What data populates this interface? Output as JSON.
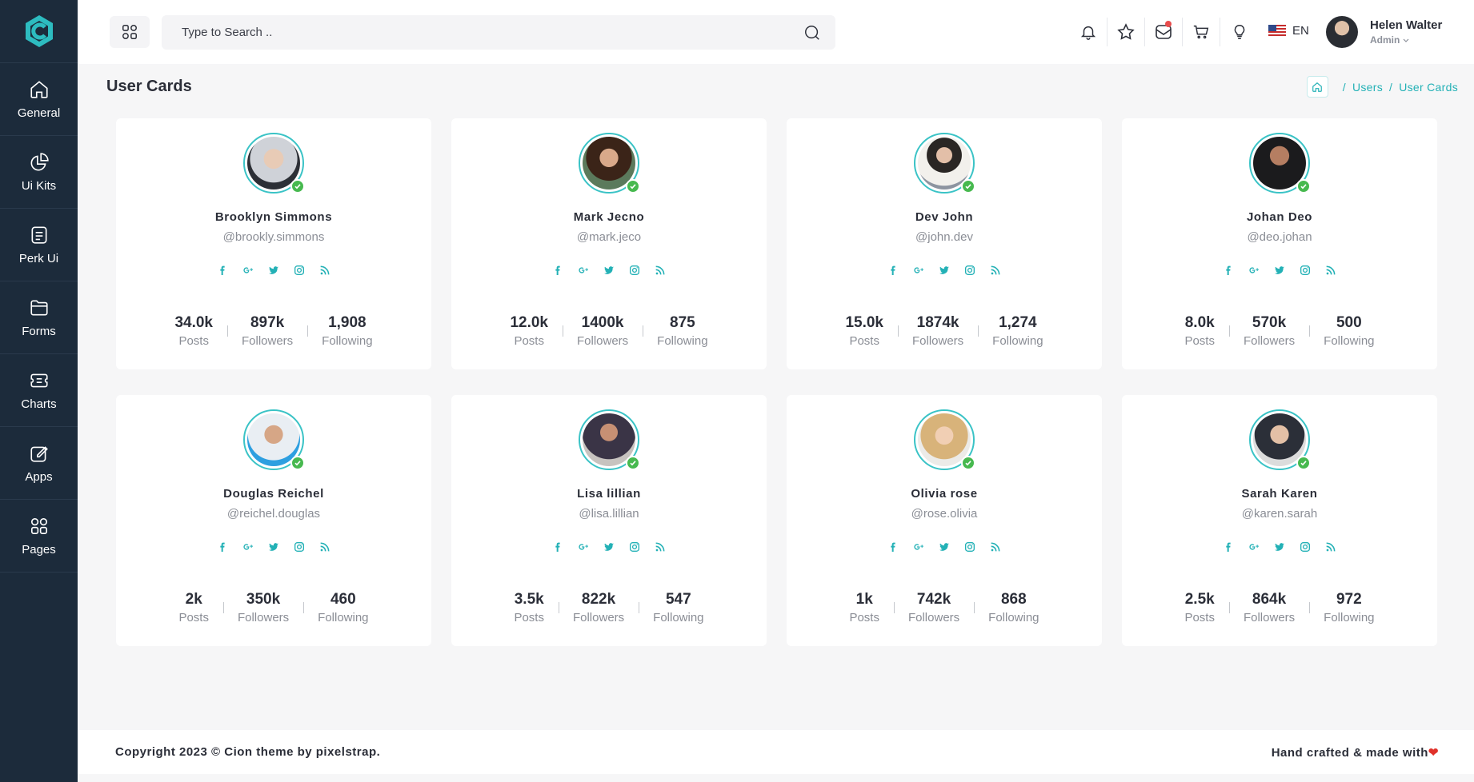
{
  "sidebar": {
    "items": [
      {
        "label": "General",
        "icon": "home-icon"
      },
      {
        "label": "Ui Kits",
        "icon": "pie-chart-icon"
      },
      {
        "label": "Perk Ui",
        "icon": "document-icon"
      },
      {
        "label": "Forms",
        "icon": "folder-icon"
      },
      {
        "label": "Charts",
        "icon": "ticket-icon"
      },
      {
        "label": "Apps",
        "icon": "edit-icon"
      },
      {
        "label": "Pages",
        "icon": "grid-icon"
      }
    ]
  },
  "header": {
    "search_placeholder": "Type to Search ..",
    "language": "EN",
    "user": {
      "name": "Helen Walter",
      "role": "Admin"
    }
  },
  "page": {
    "title": "User Cards",
    "breadcrumb": [
      "Users",
      "User Cards"
    ]
  },
  "labels": {
    "posts": "Posts",
    "followers": "Followers",
    "following": "Following"
  },
  "users": [
    {
      "name": "Brooklyn Simmons",
      "handle": "@brookly.simmons",
      "posts": "34.0k",
      "followers": "897k",
      "following": "1,908"
    },
    {
      "name": "Mark Jecno",
      "handle": "@mark.jeco",
      "posts": "12.0k",
      "followers": "1400k",
      "following": "875"
    },
    {
      "name": "Dev John",
      "handle": "@john.dev",
      "posts": "15.0k",
      "followers": "1874k",
      "following": "1,274"
    },
    {
      "name": "Johan Deo",
      "handle": "@deo.johan",
      "posts": "8.0k",
      "followers": "570k",
      "following": "500"
    },
    {
      "name": "Douglas Reichel",
      "handle": "@reichel.douglas",
      "posts": "2k",
      "followers": "350k",
      "following": "460"
    },
    {
      "name": "Lisa lillian",
      "handle": "@lisa.lillian",
      "posts": "3.5k",
      "followers": "822k",
      "following": "547"
    },
    {
      "name": "Olivia rose",
      "handle": "@rose.olivia",
      "posts": "1k",
      "followers": "742k",
      "following": "868"
    },
    {
      "name": "Sarah Karen",
      "handle": "@karen.sarah",
      "posts": "2.5k",
      "followers": "864k",
      "following": "972"
    }
  ],
  "footer": {
    "copyright": "Copyright 2023 © Cion theme by pixelstrap.",
    "crafted": "Hand crafted & made with"
  },
  "colors": {
    "accent": "#23b1b6",
    "sidebar": "#1c2b3b",
    "online": "#47b94f"
  }
}
